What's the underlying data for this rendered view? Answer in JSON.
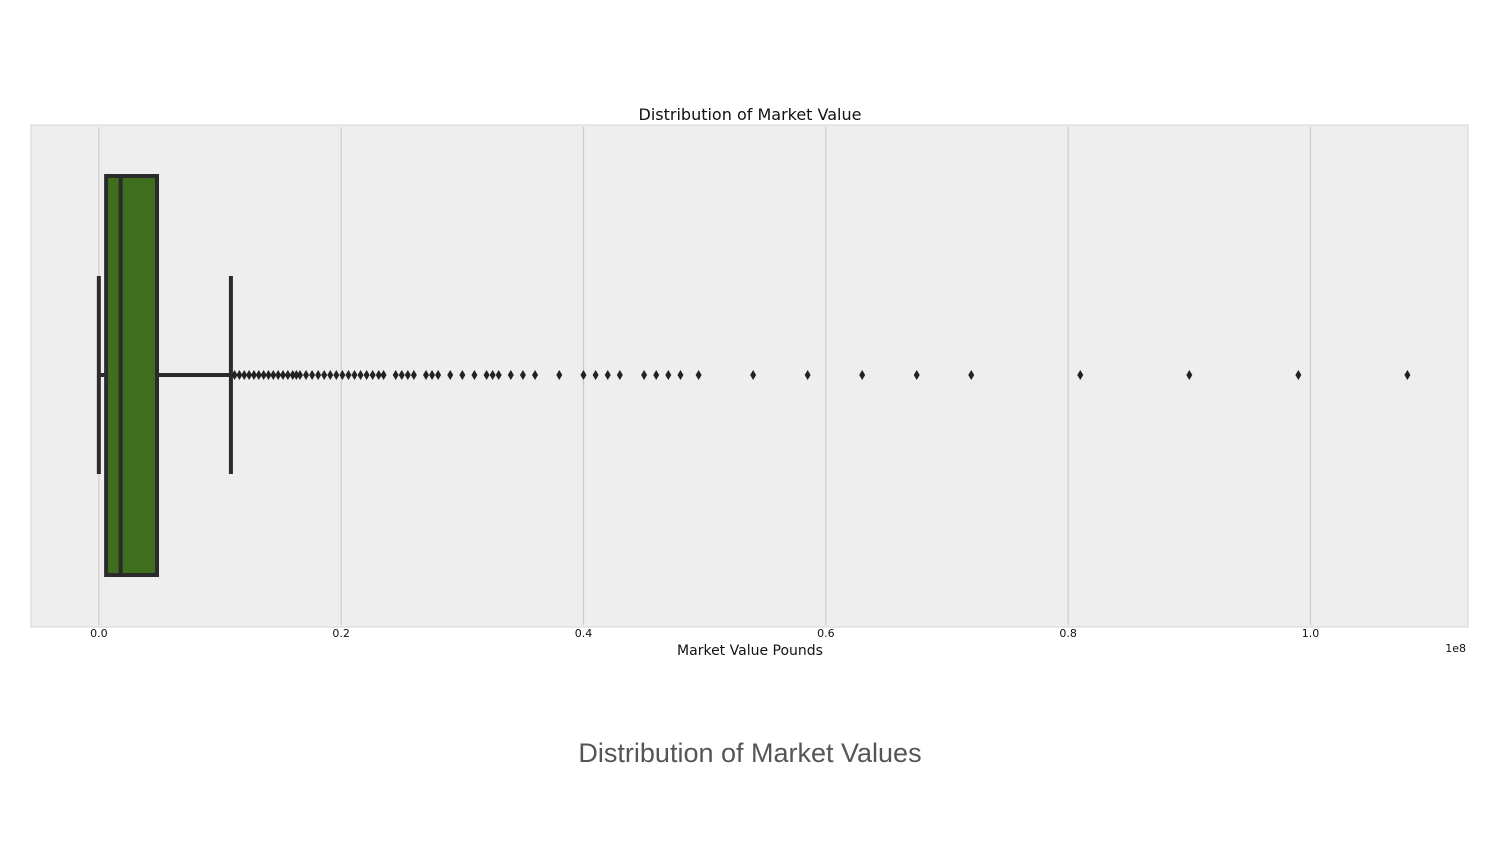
{
  "caption": "Distribution of Market Values",
  "chart_data": {
    "type": "boxplot",
    "orientation": "horizontal",
    "title": "Distribution of Market Value",
    "xlabel": "Market Value Pounds",
    "ylabel": "",
    "x_offset_label": "1e8",
    "xlim": [
      -5600000,
      113000000
    ],
    "xticks": [
      0,
      20000000,
      40000000,
      60000000,
      80000000,
      100000000
    ],
    "xtick_labels": [
      "0.0",
      "0.2",
      "0.4",
      "0.6",
      "0.8",
      "1.0"
    ],
    "grid": "x",
    "colors": {
      "box_fill": "#3f6e1e",
      "box_edge": "#2b2b2b",
      "plot_bg": "#eeeeee",
      "grid": "#cccccc"
    },
    "box": {
      "whisker_low": 0,
      "q1": 600000,
      "median": 1800000,
      "q3": 4800000,
      "whisker_high": 10900000
    },
    "outliers": [
      11200000,
      11600000,
      12000000,
      12400000,
      12800000,
      13200000,
      13600000,
      14000000,
      14400000,
      14800000,
      15200000,
      15600000,
      16000000,
      16300000,
      16600000,
      17100000,
      17600000,
      18100000,
      18600000,
      19100000,
      19600000,
      20100000,
      20600000,
      21100000,
      21600000,
      22100000,
      22600000,
      23100000,
      23500000,
      24500000,
      25000000,
      25500000,
      26000000,
      27000000,
      27500000,
      28000000,
      29000000,
      30000000,
      31000000,
      32000000,
      32500000,
      33000000,
      34000000,
      35000000,
      36000000,
      38000000,
      40000000,
      41000000,
      42000000,
      43000000,
      45000000,
      46000000,
      47000000,
      48000000,
      49500000,
      54000000,
      58500000,
      63000000,
      67500000,
      72000000,
      81000000,
      90000000,
      99000000,
      108000000
    ]
  }
}
